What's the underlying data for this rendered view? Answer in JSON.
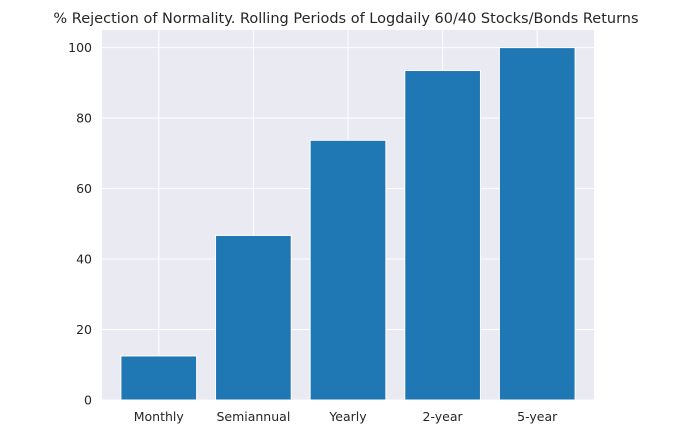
{
  "chart_data": {
    "type": "bar",
    "title": "% Rejection of Normality. Rolling Periods of Logdaily 60/40 Stocks/Bonds Returns",
    "xlabel": "",
    "ylabel": "",
    "categories": [
      "Monthly",
      "Semiannual",
      "Yearly",
      "2-year",
      "5-year"
    ],
    "values": [
      12.5,
      46.7,
      73.7,
      93.5,
      100.0
    ],
    "ylim": [
      0,
      105
    ],
    "yticks": [
      0,
      20,
      40,
      60,
      80,
      100
    ],
    "grid": true,
    "legend": "none",
    "colors": {
      "bar": "#1f77b4",
      "plot_background": "#eaeaf2",
      "grid": "#ffffff",
      "text": "#262626"
    }
  }
}
